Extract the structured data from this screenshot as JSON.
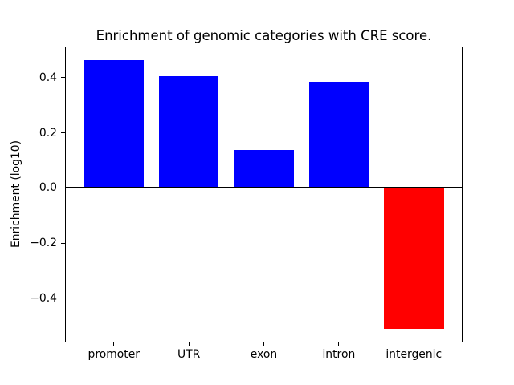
{
  "chart_data": {
    "type": "bar",
    "title": "Enrichment of genomic categories with CRE score.",
    "xlabel": "",
    "ylabel": "Enrichment (log10)",
    "categories": [
      "promoter",
      "UTR",
      "exon",
      "intron",
      "intergenic"
    ],
    "values": [
      0.465,
      0.405,
      0.137,
      0.386,
      -0.51
    ],
    "bar_colors": [
      "#0000ff",
      "#0000ff",
      "#0000ff",
      "#0000ff",
      "#ff0000"
    ],
    "bar_width_fraction": 0.8,
    "ylim": [
      -0.556,
      0.512
    ],
    "yticks": [
      {
        "value": 0.4,
        "label": "0.4"
      },
      {
        "value": 0.2,
        "label": "0.2"
      },
      {
        "value": 0.0,
        "label": "0.0"
      },
      {
        "value": -0.2,
        "label": "−0.2"
      },
      {
        "value": -0.4,
        "label": "−0.4"
      }
    ],
    "zero_line": {
      "value": 0.0,
      "color": "#000000",
      "thickness_px": 2
    },
    "grid": false,
    "legend": false,
    "colors": {
      "positive_bar": "#0000ff",
      "negative_bar": "#ff0000",
      "axis": "#000000",
      "background": "#ffffff",
      "text": "#000000"
    }
  }
}
